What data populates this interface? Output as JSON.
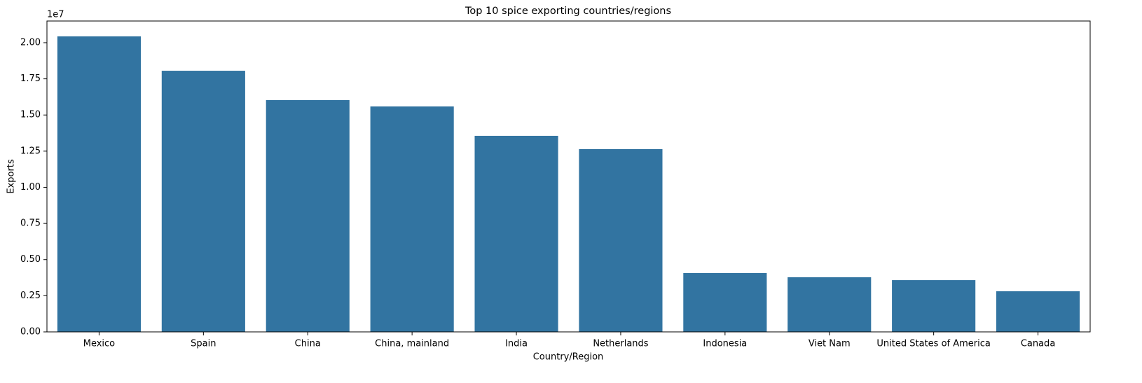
{
  "chart_data": {
    "type": "bar",
    "title": "Top 10 spice exporting countries/regions",
    "x_label": "Country/Region",
    "y_label": "Exports",
    "y_offset_label": "1e7",
    "categories": [
      "Mexico",
      "Spain",
      "China",
      "China, mainland",
      "India",
      "Netherlands",
      "Indonesia",
      "Viet Nam",
      "United States of America",
      "Canada"
    ],
    "values": [
      20440000,
      18060000,
      16030000,
      15590000,
      13560000,
      12640000,
      4070000,
      3780000,
      3580000,
      2810000
    ],
    "color": "#3274a1",
    "ylim": [
      0,
      21500000
    ],
    "yticks": [
      {
        "value": 0,
        "label": "0.00"
      },
      {
        "value": 2500000,
        "label": "0.25"
      },
      {
        "value": 5000000,
        "label": "0.50"
      },
      {
        "value": 7500000,
        "label": "0.75"
      },
      {
        "value": 10000000,
        "label": "1.00"
      },
      {
        "value": 12500000,
        "label": "1.25"
      },
      {
        "value": 15000000,
        "label": "1.50"
      },
      {
        "value": 17500000,
        "label": "1.75"
      },
      {
        "value": 20000000,
        "label": "2.00"
      }
    ],
    "grid": false
  }
}
